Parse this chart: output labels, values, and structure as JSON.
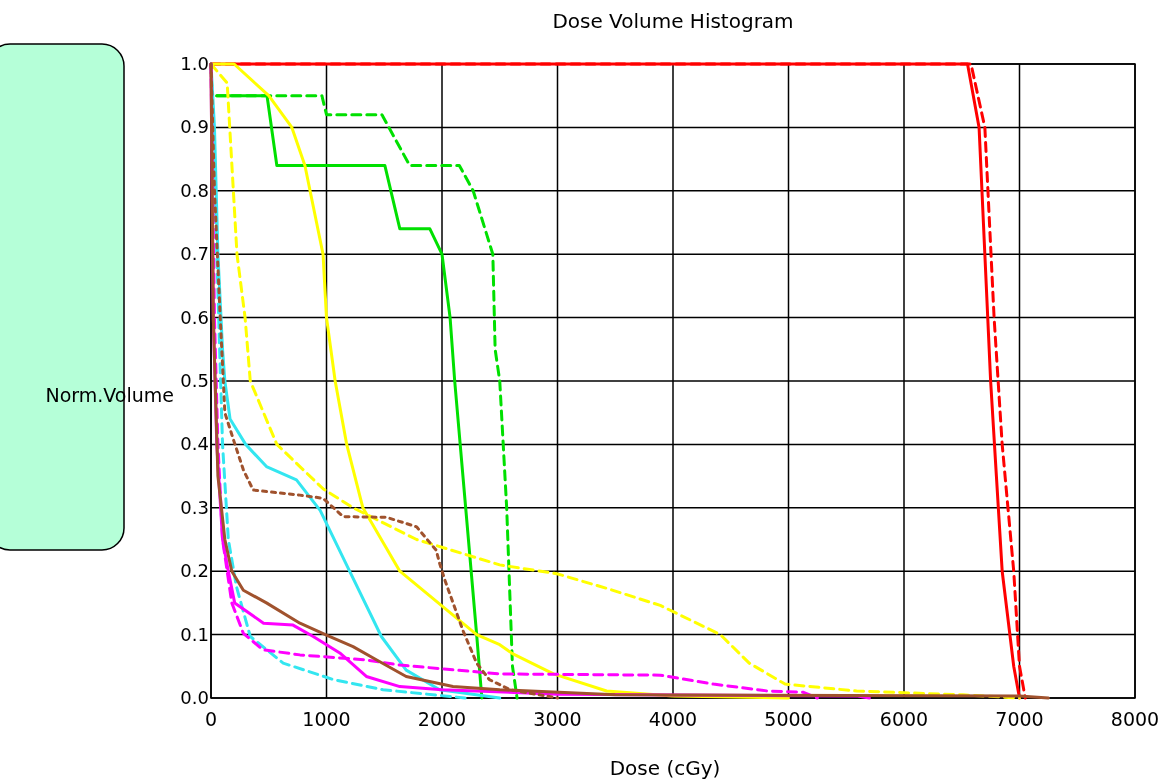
{
  "chart_data": {
    "type": "line",
    "title": "Dose Volume Histogram",
    "xlabel": "Dose (cGy)",
    "ylabel": "Norm.Volume",
    "xlim": [
      0,
      8000
    ],
    "ylim": [
      0,
      1
    ],
    "xticks": [
      0,
      1000,
      2000,
      3000,
      4000,
      5000,
      6000,
      7000,
      8000
    ],
    "yticks": [
      {
        "value": 0,
        "label": "0.0"
      },
      {
        "value": 0.1,
        "label": "0.1"
      },
      {
        "value": 0.2,
        "label": "0.2"
      },
      {
        "value": 0.3,
        "label": "0.3"
      },
      {
        "value": 0.4,
        "label": "0.4"
      },
      {
        "value": 0.5,
        "label": "0.5"
      },
      {
        "value": 0.6,
        "label": "0.6"
      },
      {
        "value": 0.7,
        "label": "0.7"
      },
      {
        "value": 0.8,
        "label": "0.8"
      },
      {
        "value": 0.9,
        "label": "0.9"
      },
      {
        "value": 1,
        "label": "1.0"
      }
    ],
    "grid": true,
    "marker": "none",
    "series": [
      {
        "color": "#ff0000",
        "line_style": "solid",
        "x": [
          0,
          6550,
          6650,
          6700,
          6750,
          6800,
          6850,
          6950,
          7000
        ],
        "values": [
          1,
          1,
          0.9,
          0.7,
          0.5,
          0.35,
          0.2,
          0.05,
          0
        ]
      },
      {
        "color": "#ff0000",
        "line_style": "dashed",
        "x": [
          0,
          6580,
          6700,
          6780,
          6850,
          6950,
          7000,
          7050
        ],
        "values": [
          1,
          1,
          0.9,
          0.6,
          0.4,
          0.2,
          0.05,
          0
        ]
      },
      {
        "color": "#00e000",
        "line_style": "solid",
        "x": [
          50,
          485,
          570,
          1505,
          1635,
          1895,
          2000,
          2070,
          2110,
          2300,
          2345
        ],
        "values": [
          0.95,
          0.95,
          0.84,
          0.84,
          0.74,
          0.74,
          0.7,
          0.6,
          0.5,
          0.1,
          0
        ]
      },
      {
        "color": "#00e000",
        "line_style": "dashed",
        "x": [
          50,
          960,
          1000,
          1480,
          1720,
          2150,
          2270,
          2440,
          2460,
          2500,
          2560,
          2610,
          2650
        ],
        "values": [
          0.95,
          0.95,
          0.92,
          0.92,
          0.84,
          0.84,
          0.8,
          0.7,
          0.55,
          0.5,
          0.3,
          0.05,
          0
        ]
      },
      {
        "color": "#ffff00",
        "line_style": "solid",
        "x": [
          0,
          200,
          500,
          700,
          813,
          970,
          1000,
          1075,
          1175,
          1315,
          1635,
          2300,
          2500,
          2610,
          2965,
          3425,
          4000,
          5000
        ],
        "values": [
          1,
          1,
          0.95,
          0.9,
          0.84,
          0.7,
          0.6,
          0.5,
          0.4,
          0.3,
          0.2,
          0.1,
          0.084,
          0.07,
          0.038,
          0.011,
          0.003,
          0
        ]
      },
      {
        "color": "#ffff00",
        "line_style": "dashed",
        "x": [
          0,
          140,
          225,
          295,
          340,
          570,
          970,
          1230,
          1780,
          2500,
          2995,
          3425,
          3890,
          4410,
          4660,
          4970,
          5590,
          6510,
          7000
        ],
        "values": [
          1,
          0.97,
          0.7,
          0.6,
          0.5,
          0.4,
          0.33,
          0.3,
          0.25,
          0.21,
          0.196,
          0.173,
          0.146,
          0.1,
          0.055,
          0.022,
          0.011,
          0.005,
          0
        ]
      },
      {
        "color": "#33e6f0",
        "line_style": "solid",
        "x": [
          0,
          30,
          60,
          100,
          120,
          165,
          300,
          480,
          740,
          945,
          1200,
          1475,
          1690,
          1980,
          2500
        ],
        "values": [
          1,
          0.9,
          0.7,
          0.55,
          0.5,
          0.44,
          0.4,
          0.365,
          0.344,
          0.296,
          0.2,
          0.097,
          0.044,
          0.013,
          0
        ]
      },
      {
        "color": "#33e6f0",
        "line_style": "dashed",
        "x": [
          0,
          50,
          100,
          150,
          220,
          340,
          625,
          1060,
          1490,
          2200
        ],
        "values": [
          1,
          0.7,
          0.4,
          0.25,
          0.176,
          0.097,
          0.055,
          0.029,
          0.013,
          0
        ]
      },
      {
        "color": "#ff00ff",
        "line_style": "solid",
        "x": [
          0,
          20,
          50,
          100,
          150,
          205,
          455,
          710,
          885,
          1115,
          1345,
          1635,
          2000,
          3000,
          5600,
          5700
        ],
        "values": [
          1,
          0.6,
          0.4,
          0.25,
          0.2,
          0.15,
          0.118,
          0.115,
          0.097,
          0.071,
          0.034,
          0.018,
          0.013,
          0.006,
          0.003,
          0
        ]
      },
      {
        "color": "#ff00ff",
        "line_style": "dashed",
        "x": [
          0,
          30,
          60,
          100,
          180,
          280,
          450,
          770,
          1345,
          1635,
          2500,
          3890,
          4350,
          4820,
          5130,
          5250
        ],
        "values": [
          1,
          0.6,
          0.4,
          0.25,
          0.15,
          0.102,
          0.076,
          0.068,
          0.06,
          0.052,
          0.038,
          0.036,
          0.022,
          0.011,
          0.009,
          0
        ]
      },
      {
        "color": "#a0522d",
        "line_style": "solid",
        "x": [
          0,
          20,
          60,
          120,
          180,
          280,
          480,
          770,
          1000,
          1230,
          1435,
          1690,
          2095,
          2500,
          3500,
          7000,
          7250
        ],
        "values": [
          1,
          0.6,
          0.35,
          0.25,
          0.2,
          0.17,
          0.15,
          0.118,
          0.099,
          0.081,
          0.06,
          0.034,
          0.018,
          0.013,
          0.005,
          0.003,
          0
        ]
      },
      {
        "color": "#a0522d",
        "line_style": "dotted",
        "x": [
          0,
          30,
          80,
          120,
          195,
          280,
          365,
          770,
          970,
          1145,
          1520,
          1780,
          1950,
          1980,
          2025,
          2180,
          2300,
          2410,
          2590,
          3000
        ],
        "values": [
          1,
          0.8,
          0.6,
          0.45,
          0.407,
          0.36,
          0.328,
          0.32,
          0.315,
          0.286,
          0.285,
          0.27,
          0.233,
          0.212,
          0.186,
          0.107,
          0.055,
          0.029,
          0.013,
          0
        ]
      }
    ]
  }
}
